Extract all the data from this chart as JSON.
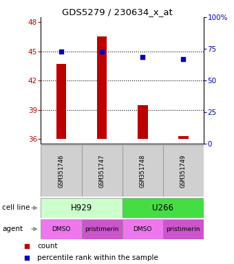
{
  "title": "GDS5279 / 230634_x_at",
  "samples": [
    "GSM351746",
    "GSM351747",
    "GSM351748",
    "GSM351749"
  ],
  "bar_bottoms": [
    36,
    36,
    36,
    36
  ],
  "bar_tops": [
    43.7,
    46.5,
    39.5,
    36.3
  ],
  "percentile_values": [
    45.0,
    45.0,
    44.4,
    44.2
  ],
  "ylim_left": [
    35.5,
    48.5
  ],
  "ylim_right": [
    0,
    100
  ],
  "yticks_left": [
    36,
    39,
    42,
    45,
    48
  ],
  "yticks_right": [
    0,
    25,
    50,
    75,
    100
  ],
  "ytick_labels_right": [
    "0",
    "25",
    "50",
    "75",
    "100%"
  ],
  "hlines": [
    39,
    42,
    45
  ],
  "bar_color": "#bb0000",
  "dot_color": "#0000bb",
  "cell_lines": [
    {
      "label": "H929",
      "span": [
        0,
        2
      ],
      "color": "#ccffcc"
    },
    {
      "label": "U266",
      "span": [
        2,
        4
      ],
      "color": "#44dd44"
    }
  ],
  "agents": [
    {
      "label": "DMSO",
      "span": [
        0,
        1
      ],
      "color": "#ee77ee"
    },
    {
      "label": "pristimerin",
      "span": [
        1,
        2
      ],
      "color": "#cc55cc"
    },
    {
      "label": "DMSO",
      "span": [
        2,
        3
      ],
      "color": "#ee77ee"
    },
    {
      "label": "pristimerin",
      "span": [
        3,
        4
      ],
      "color": "#cc55cc"
    }
  ],
  "legend_count_color": "#bb0000",
  "legend_pct_color": "#0000bb",
  "axis_color_left": "#bb0000",
  "axis_color_right": "#0000bb",
  "fig_bg_color": "#ffffff",
  "bar_width": 0.25,
  "cell_line_row_label": "cell line",
  "agent_row_label": "agent",
  "sample_box_color": "#d0d0d0"
}
